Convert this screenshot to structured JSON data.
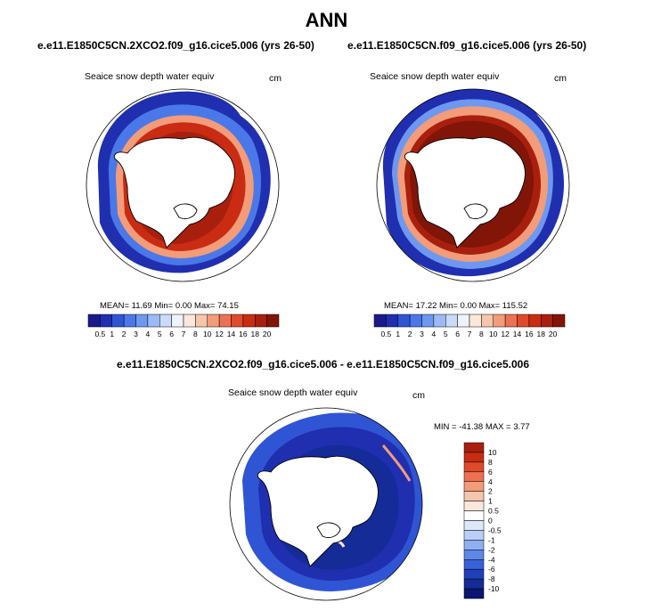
{
  "figure": {
    "season": "ANN",
    "diff_title": "e.e11.E1850C5CN.2XCO2.f09_g16.cice5.006 - e.e11.E1850C5CN.f09_g16.cice5.006"
  },
  "panels": [
    {
      "case_title": "e.e11.E1850C5CN.2XCO2.f09_g16.cice5.006 (yrs 26-50)",
      "variable": "Seaice snow depth water equiv",
      "units": "cm",
      "stats": "MEAN=  11.69  Min=   0.00  Max=  74.15"
    },
    {
      "case_title": "e.e11.E1850C5CN.f09_g16.cice5.006 (yrs 26-50)",
      "variable": "Seaice snow depth water equiv",
      "units": "cm",
      "stats": "MEAN=  17.22  Min=   0.00  Max= 115.52"
    },
    {
      "variable": "Seaice snow depth water equiv",
      "units": "cm",
      "stats": "MIN = -41.38 MAX =   3.77"
    }
  ],
  "colorbar_abs": {
    "labels": [
      "0.5",
      "1",
      "2",
      "3",
      "4",
      "5",
      "6",
      "7",
      "8",
      "10",
      "12",
      "14",
      "16",
      "18",
      "20"
    ],
    "colors": [
      "#1a1a8c",
      "#1f2fb0",
      "#2f55d4",
      "#4a78e8",
      "#6e98f0",
      "#9cbaf5",
      "#c9dbf8",
      "#eef3fb",
      "#fbe7dc",
      "#f6c6ac",
      "#f29c7a",
      "#ec7152",
      "#e04a2a",
      "#c92c12",
      "#a8200d",
      "#801508"
    ]
  },
  "colorbar_diff": {
    "labels": [
      "10",
      "8",
      "6",
      "4",
      "2",
      "1",
      "0.5",
      "0",
      "-0.5",
      "-1",
      "-2",
      "-4",
      "-6",
      "-8",
      "-10"
    ],
    "colors": [
      "#a8200d",
      "#c92c12",
      "#e04a2a",
      "#ec7152",
      "#f29c7a",
      "#f6c6ac",
      "#fbe7dc",
      "#ffffff",
      "#dde8f8",
      "#b9cff5",
      "#8fb0f0",
      "#5f87e6",
      "#3a62d8",
      "#2040b8",
      "#142b98",
      "#0b1670"
    ]
  }
}
